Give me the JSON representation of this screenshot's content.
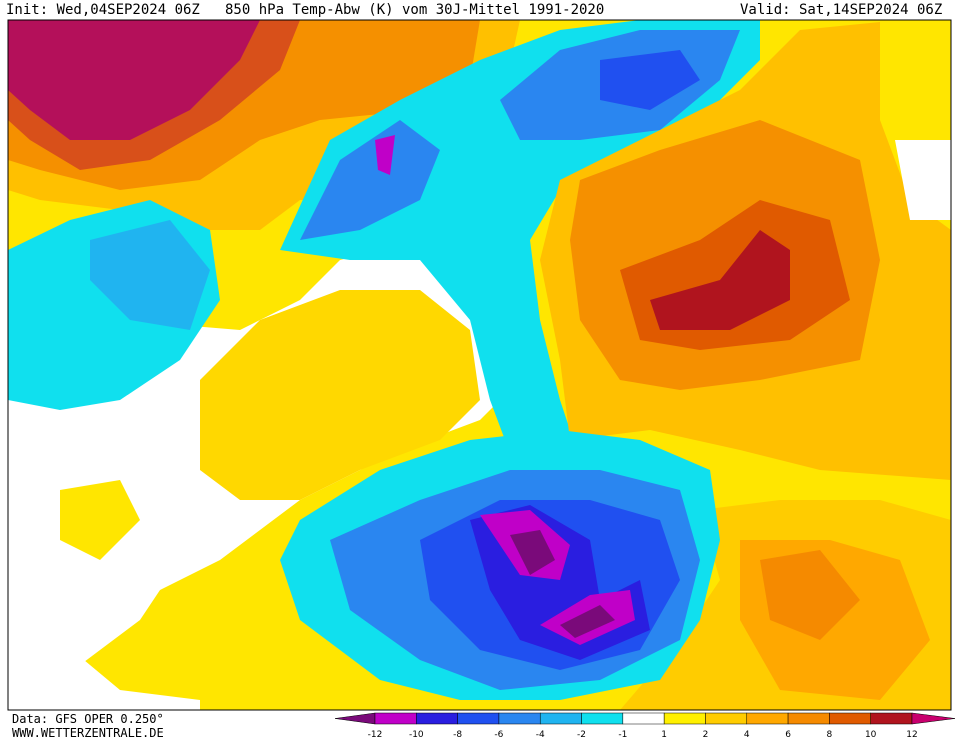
{
  "header": {
    "init": "Init: Wed,04SEP2024 06Z",
    "title": "850 hPa Temp-Abw (K) vom 30J-Mittel 1991-2020",
    "valid": "Valid: Sat,14SEP2024 06Z"
  },
  "footer": {
    "source": "Data: GFS OPER 0.250°",
    "website": "WWW.WETTERZENTRALE.DE"
  },
  "legend": {
    "ticks": [
      -12,
      -10,
      -8,
      -6,
      -4,
      -2,
      -1,
      1,
      2,
      4,
      6,
      8,
      10,
      12
    ],
    "colors": [
      "#7a0a7a",
      "#c000c8",
      "#2a1ee0",
      "#2050f0",
      "#2a86f0",
      "#20b4f0",
      "#10e0ee",
      "#ffffff",
      "#fff000",
      "#ffcc00",
      "#ffa800",
      "#f58a00",
      "#e05a00",
      "#b0141e",
      "#c8006e"
    ]
  }
}
